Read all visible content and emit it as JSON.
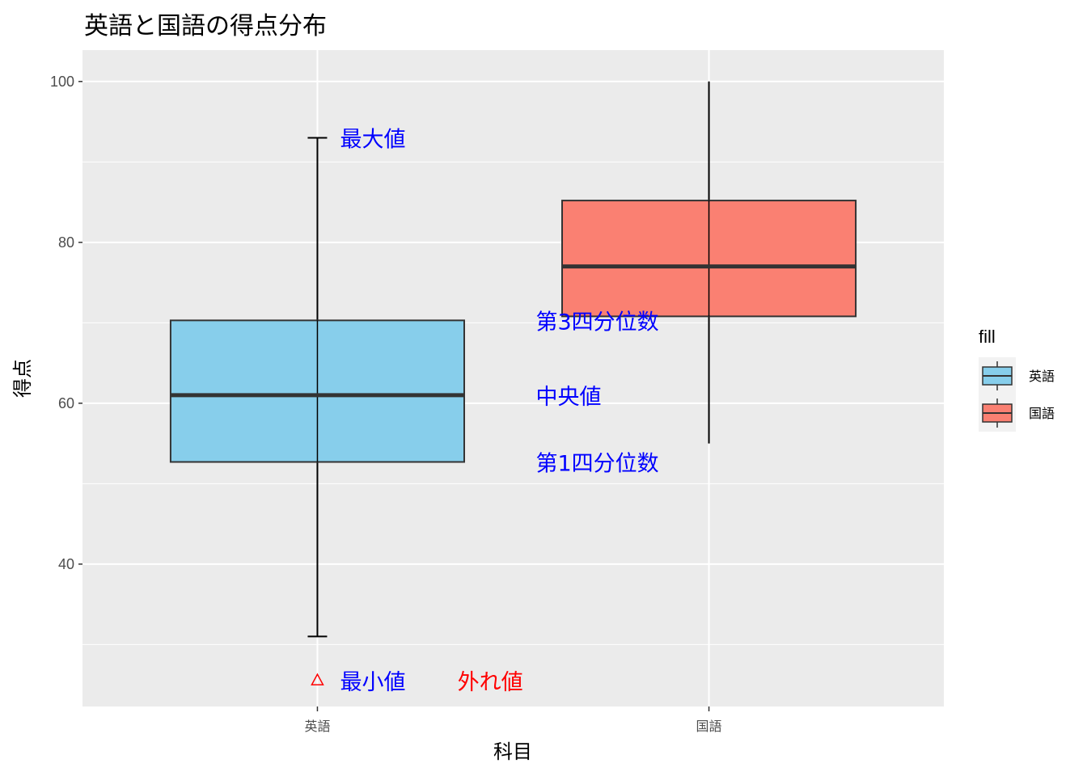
{
  "chart_data": {
    "type": "boxplot",
    "title": "英語と国語の得点分布",
    "xlabel": "科目",
    "ylabel": "得点",
    "ylim": [
      22.3,
      103.9
    ],
    "y_ticks": [
      40,
      60,
      80,
      100
    ],
    "grid": true,
    "categories": [
      "英語",
      "国語"
    ],
    "boxes": [
      {
        "category": "英語",
        "min": 31,
        "q1": 52.7,
        "median": 61,
        "q3": 70.3,
        "max": 93,
        "outliers": [
          25.5
        ],
        "fill": "#87CEEB",
        "whisker_caps": true
      },
      {
        "category": "国語",
        "min": 55,
        "q1": 70.8,
        "median": 77,
        "q3": 85.2,
        "max": 100,
        "outliers": [],
        "fill": "#FA8072",
        "whisker_caps": false
      }
    ],
    "annotations": [
      {
        "text": "最大値",
        "x": 1.0,
        "y": 93,
        "color": "#0000FF"
      },
      {
        "text": "第3四分位数",
        "x": 1.5,
        "y": 70.3,
        "color": "#0000FF"
      },
      {
        "text": "中央値",
        "x": 1.5,
        "y": 61,
        "color": "#0000FF"
      },
      {
        "text": "第1四分位数",
        "x": 1.5,
        "y": 52.7,
        "color": "#0000FF"
      },
      {
        "text": "最小値",
        "x": 1.0,
        "y": 25.5,
        "color": "#0000FF"
      },
      {
        "text": "外れ値",
        "x": 1.3,
        "y": 25.5,
        "color": "#FF0000"
      }
    ],
    "legend": {
      "title": "fill",
      "position": "right",
      "items": [
        {
          "label": "英語",
          "color": "#87CEEB"
        },
        {
          "label": "国語",
          "color": "#FA8072"
        }
      ]
    },
    "outlier_color": "#FF0000",
    "outlier_shape": "triangle"
  }
}
